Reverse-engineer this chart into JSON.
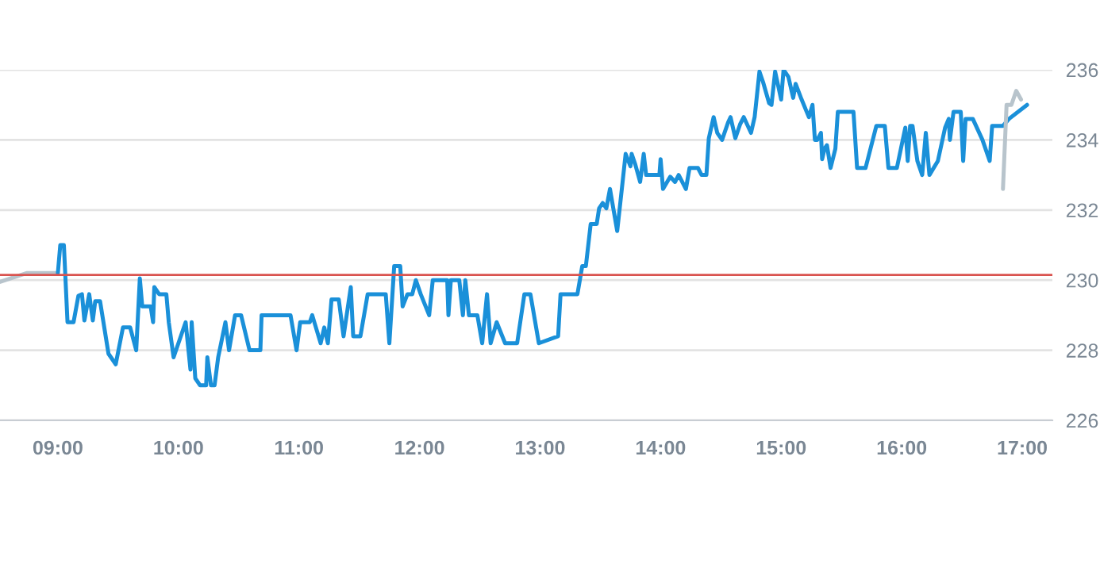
{
  "chart_data": {
    "type": "line",
    "xlim": [
      8.52,
      17.25
    ],
    "ylim": [
      226,
      236
    ],
    "xticks": [
      {
        "value": 9,
        "label": "09:00"
      },
      {
        "value": 10,
        "label": "10:00"
      },
      {
        "value": 11,
        "label": "11:00"
      },
      {
        "value": 12,
        "label": "12:00"
      },
      {
        "value": 13,
        "label": "13:00"
      },
      {
        "value": 14,
        "label": "14:00"
      },
      {
        "value": 15,
        "label": "15:00"
      },
      {
        "value": 16,
        "label": "16:00"
      },
      {
        "value": 17,
        "label": "17:00"
      }
    ],
    "yticks": [
      226,
      228,
      230,
      232,
      234,
      236
    ],
    "grid": "y",
    "legend": false,
    "marker": "none",
    "line_style": "solid",
    "ref_lines": [
      {
        "axis": "y",
        "value": 230.15,
        "color": "#d9534f"
      }
    ],
    "series": [
      {
        "color": "#b8c4cc",
        "x": [
          8.52,
          8.74,
          8.99
        ],
        "values": [
          229.95,
          230.2,
          230.2
        ]
      },
      {
        "color": "#1a90d9",
        "x": [
          9.0,
          9.02,
          9.05,
          9.08,
          9.13,
          9.17,
          9.2,
          9.22,
          9.26,
          9.29,
          9.31,
          9.35,
          9.42,
          9.48,
          9.54,
          9.6,
          9.65,
          9.68,
          9.7,
          9.77,
          9.79,
          9.8,
          9.84,
          9.9,
          9.92,
          9.96,
          10.03,
          10.06,
          10.1,
          10.11,
          10.14,
          10.18,
          10.23,
          10.24,
          10.27,
          10.3,
          10.33,
          10.39,
          10.42,
          10.47,
          10.52,
          10.59,
          10.68,
          10.69,
          10.93,
          10.98,
          11.01,
          11.09,
          11.11,
          11.18,
          11.21,
          11.24,
          11.27,
          11.33,
          11.37,
          11.43,
          11.45,
          11.51,
          11.57,
          11.72,
          11.75,
          11.79,
          11.84,
          11.86,
          11.9,
          11.94,
          11.97,
          12.01,
          12.08,
          12.11,
          12.23,
          12.24,
          12.26,
          12.33,
          12.36,
          12.38,
          12.41,
          12.48,
          12.52,
          12.56,
          12.59,
          12.64,
          12.71,
          12.81,
          12.87,
          12.92,
          12.99,
          13.15,
          13.17,
          13.31,
          13.35,
          13.38,
          13.42,
          13.47,
          13.49,
          13.52,
          13.55,
          13.58,
          13.64,
          13.68,
          13.71,
          13.75,
          13.76,
          13.79,
          13.83,
          13.86,
          13.88,
          13.99,
          14.0,
          14.02,
          14.08,
          14.12,
          14.15,
          14.21,
          14.24,
          14.31,
          14.34,
          14.38,
          14.4,
          14.44,
          14.47,
          14.51,
          14.56,
          14.58,
          14.62,
          14.66,
          14.69,
          14.75,
          14.78,
          14.82,
          14.85,
          14.9,
          14.92,
          14.95,
          15.0,
          15.02,
          15.06,
          15.1,
          15.12,
          15.17,
          15.23,
          15.26,
          15.28,
          15.3,
          15.33,
          15.34,
          15.36,
          15.38,
          15.41,
          15.45,
          15.47,
          15.6,
          15.63,
          15.7,
          15.79,
          15.86,
          15.89,
          15.96,
          16.03,
          16.05,
          16.07,
          16.09,
          16.13,
          16.17,
          16.2,
          16.23,
          16.3,
          16.36,
          16.39,
          16.4,
          16.43,
          16.49,
          16.51,
          16.53,
          16.59,
          16.67,
          16.73,
          16.75,
          16.84,
          16.89,
          17.04
        ],
        "values": [
          230.2,
          231.0,
          231.0,
          228.8,
          228.8,
          229.55,
          229.6,
          228.85,
          229.6,
          228.85,
          229.4,
          229.4,
          227.9,
          227.6,
          228.65,
          228.65,
          228.0,
          230.05,
          229.25,
          229.25,
          228.8,
          229.8,
          229.6,
          229.6,
          228.8,
          227.8,
          228.5,
          228.8,
          227.45,
          228.8,
          227.2,
          227.0,
          227.0,
          227.8,
          227.0,
          227.0,
          227.8,
          228.8,
          228.0,
          229.0,
          229.0,
          228.0,
          228.0,
          229.0,
          229.0,
          228.0,
          228.8,
          228.8,
          229.0,
          228.2,
          228.65,
          228.2,
          229.45,
          229.45,
          228.4,
          229.8,
          228.4,
          228.4,
          229.6,
          229.6,
          228.2,
          230.4,
          230.4,
          229.25,
          229.6,
          229.6,
          230.0,
          229.6,
          229.0,
          230.0,
          230.0,
          229.0,
          230.0,
          230.0,
          229.0,
          230.0,
          229.0,
          229.0,
          228.2,
          229.6,
          228.2,
          228.8,
          228.2,
          228.2,
          229.6,
          229.6,
          228.2,
          228.4,
          229.6,
          229.6,
          230.4,
          230.4,
          231.6,
          231.6,
          232.05,
          232.2,
          232.05,
          232.6,
          231.4,
          232.65,
          233.6,
          233.25,
          233.6,
          233.3,
          232.8,
          233.6,
          233.0,
          233.0,
          233.45,
          232.6,
          232.95,
          232.8,
          233.0,
          232.6,
          233.2,
          233.2,
          233.0,
          233.0,
          234.05,
          234.65,
          234.2,
          234.0,
          234.5,
          234.65,
          234.05,
          234.45,
          234.65,
          234.2,
          234.65,
          235.95,
          235.65,
          235.05,
          235.0,
          235.95,
          235.15,
          236.0,
          235.8,
          235.2,
          235.6,
          235.15,
          234.65,
          235.0,
          234.0,
          234.0,
          234.2,
          233.45,
          233.75,
          233.85,
          233.2,
          233.75,
          234.8,
          234.8,
          233.2,
          233.2,
          234.4,
          234.4,
          233.2,
          233.2,
          234.35,
          233.4,
          234.4,
          234.4,
          233.4,
          233.0,
          234.2,
          233.0,
          233.4,
          234.35,
          234.6,
          234.0,
          234.8,
          234.8,
          233.4,
          234.6,
          234.6,
          234.0,
          233.4,
          234.4,
          234.4,
          234.6,
          235.0
        ]
      },
      {
        "color": "#b8c4cc",
        "x": [
          16.84,
          16.87,
          16.91,
          16.95,
          16.99
        ],
        "values": [
          232.6,
          235.0,
          235.0,
          235.4,
          235.15
        ]
      }
    ]
  }
}
